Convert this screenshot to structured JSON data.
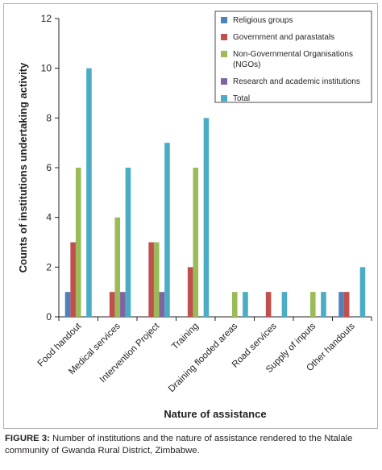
{
  "chart_data": {
    "type": "bar",
    "title": "",
    "xlabel": "Nature of assistance",
    "ylabel": "Counts of  institutions undertaking activity",
    "ylim": [
      0,
      12
    ],
    "yticks": [
      0,
      2,
      4,
      6,
      8,
      10,
      12
    ],
    "grid": false,
    "legend_position": "top-right",
    "categories": [
      "Food handout",
      "Medical services",
      "Intervention Project",
      "Training",
      "Draining flooded areas",
      "Road services",
      "Supply of inputs",
      "Other handouts"
    ],
    "series": [
      {
        "name": "Religious groups",
        "color": "#4f81bd",
        "values": [
          1,
          0,
          0,
          0,
          0,
          0,
          0,
          1
        ]
      },
      {
        "name": "Government and parastatals",
        "color": "#c0504d",
        "values": [
          3,
          1,
          3,
          2,
          0,
          1,
          0,
          1
        ]
      },
      {
        "name": "Non-Governmental Organisations (NGOs)",
        "legend_lines": [
          "Non-Governmental Organisations",
          "(NGOs)"
        ],
        "color": "#9bbb59",
        "values": [
          6,
          4,
          3,
          6,
          1,
          0,
          1,
          0
        ]
      },
      {
        "name": "Research and academic institutions",
        "color": "#8064a2",
        "values": [
          0,
          1,
          1,
          0,
          0,
          0,
          0,
          0
        ]
      },
      {
        "name": "Total",
        "color": "#4bacc6",
        "values": [
          10,
          6,
          7,
          8,
          1,
          1,
          1,
          2
        ]
      }
    ]
  },
  "caption": {
    "label": "FIGURE 3:",
    "text": " Number of institutions and the nature of assistance rendered to the Ntalale community of Gwanda Rural District, Zimbabwe."
  }
}
